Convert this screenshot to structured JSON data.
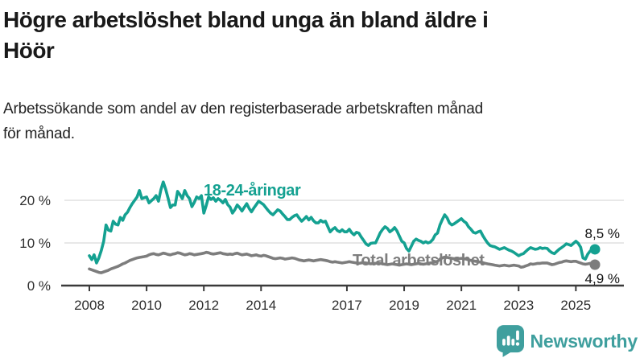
{
  "title_lines": [
    "Högre arbetslöshet bland unga än bland äldre i",
    "Höör"
  ],
  "subtitle_lines": [
    "Arbetssökande som andel av den registerbaserade arbetskraften månad",
    "för månad."
  ],
  "branding": {
    "name": "Newsworthy",
    "color": "#3f9f9e"
  },
  "colors": {
    "youth_line": "#14a191",
    "total_line": "#7d7d7d",
    "gridline": "#e0e0e0",
    "axis": "#3a3a3a",
    "text": "#111111"
  },
  "chart_data": {
    "type": "line",
    "title": "Högre arbetslöshet bland unga än bland äldre i Höör",
    "subtitle": "Arbetssökande som andel av den registerbaserade arbetskraften månad för månad.",
    "x_unit": "month",
    "x_start_year": 2008,
    "x_tick_years": [
      2008,
      2010,
      2012,
      2014,
      2017,
      2019,
      2021,
      2023,
      2025
    ],
    "y_ticks": [
      0,
      10,
      20
    ],
    "y_tick_labels": [
      "0 %",
      "10 %",
      "20 %"
    ],
    "ylim": [
      0,
      25
    ],
    "grid": "horizontal",
    "legend_position": "inline-labels",
    "series": [
      {
        "name": "18-24-åringar",
        "color": "#14a191",
        "end_label": "8,5 %",
        "values": [
          7.0,
          6.1,
          7.2,
          5.3,
          6.5,
          8.2,
          10.4,
          14.2,
          13.0,
          12.8,
          15.1,
          14.4,
          14.2,
          16.0,
          15.3,
          16.6,
          17.2,
          18.3,
          19.2,
          20.0,
          20.8,
          22.3,
          20.4,
          20.6,
          20.8,
          19.4,
          19.9,
          20.4,
          21.1,
          19.8,
          22.5,
          24.3,
          22.6,
          20.5,
          18.3,
          18.9,
          18.9,
          22.1,
          21.3,
          20.4,
          22.3,
          21.1,
          20.4,
          18.5,
          19.5,
          20.8,
          20.4,
          21.1,
          17.0,
          18.8,
          20.8,
          20.2,
          20.6,
          19.8,
          20.4,
          20.0,
          19.4,
          20.2,
          19.0,
          18.4,
          17.0,
          17.8,
          18.9,
          18.3,
          17.5,
          18.4,
          19.2,
          18.1,
          17.3,
          18.2,
          19.0,
          19.8,
          19.4,
          19.0,
          18.3,
          17.6,
          17.0,
          16.6,
          17.2,
          17.8,
          17.5,
          16.8,
          16.2,
          15.5,
          15.5,
          16.0,
          16.4,
          16.6,
          15.8,
          15.1,
          15.6,
          16.2,
          15.4,
          16.0,
          15.2,
          14.7,
          14.7,
          15.3,
          14.9,
          15.1,
          13.8,
          12.6,
          13.2,
          13.6,
          12.9,
          12.6,
          13.1,
          12.6,
          12.6,
          13.2,
          12.4,
          11.9,
          12.5,
          12.3,
          11.4,
          10.6,
          9.8,
          9.4,
          9.9,
          10.0,
          10.0,
          11.2,
          12.4,
          13.2,
          13.8,
          13.4,
          12.6,
          13.0,
          13.6,
          12.8,
          11.6,
          10.4,
          10.0,
          8.7,
          8.1,
          9.2,
          10.4,
          10.9,
          10.6,
          10.4,
          10.0,
          10.3,
          10.0,
          10.2,
          10.8,
          11.9,
          12.3,
          14.2,
          15.5,
          16.6,
          15.9,
          14.7,
          14.2,
          14.5,
          14.9,
          15.3,
          15.7,
          15.1,
          14.7,
          13.8,
          13.2,
          12.5,
          12.3,
          12.6,
          12.8,
          11.7,
          10.8,
          10.0,
          9.4,
          9.2,
          9.1,
          8.8,
          8.5,
          8.7,
          8.9,
          8.6,
          8.3,
          8.1,
          7.8,
          7.4,
          7.0,
          7.3,
          7.5,
          8.0,
          8.5,
          8.9,
          8.7,
          8.5,
          8.6,
          8.9,
          8.7,
          8.8,
          8.7,
          8.1,
          7.7,
          7.5,
          8.0,
          8.5,
          8.9,
          9.3,
          9.8,
          9.6,
          9.4,
          9.9,
          10.4,
          9.9,
          9.0,
          6.5,
          6.2,
          7.4,
          8.1,
          8.6,
          8.5
        ]
      },
      {
        "name": "Total arbetslöshet",
        "color": "#7d7d7d",
        "end_label": "4,9 %",
        "values": [
          3.9,
          3.7,
          3.5,
          3.3,
          3.1,
          3.0,
          3.2,
          3.4,
          3.6,
          3.9,
          4.1,
          4.3,
          4.5,
          4.8,
          5.1,
          5.3,
          5.6,
          5.9,
          6.1,
          6.3,
          6.5,
          6.6,
          6.7,
          6.8,
          6.9,
          7.2,
          7.4,
          7.5,
          7.3,
          7.2,
          7.4,
          7.6,
          7.5,
          7.3,
          7.2,
          7.4,
          7.5,
          7.7,
          7.6,
          7.4,
          7.2,
          7.3,
          7.5,
          7.4,
          7.2,
          7.3,
          7.4,
          7.5,
          7.6,
          7.8,
          7.7,
          7.5,
          7.4,
          7.5,
          7.6,
          7.7,
          7.5,
          7.4,
          7.3,
          7.4,
          7.3,
          7.5,
          7.6,
          7.4,
          7.2,
          7.3,
          7.4,
          7.2,
          7.0,
          7.1,
          7.2,
          7.0,
          6.9,
          7.1,
          7.0,
          6.8,
          6.6,
          6.4,
          6.3,
          6.4,
          6.5,
          6.4,
          6.2,
          6.3,
          6.4,
          6.5,
          6.4,
          6.2,
          6.0,
          5.9,
          5.8,
          5.9,
          6.0,
          5.9,
          5.8,
          5.9,
          6.0,
          6.1,
          6.0,
          5.9,
          5.8,
          5.6,
          5.5,
          5.6,
          5.5,
          5.4,
          5.3,
          5.4,
          5.5,
          5.6,
          5.5,
          5.4,
          5.3,
          5.2,
          5.3,
          5.4,
          5.3,
          5.2,
          5.1,
          5.2,
          5.2,
          5.3,
          5.2,
          5.1,
          5.0,
          4.9,
          5.0,
          5.1,
          5.0,
          4.9,
          4.8,
          4.9,
          5.0,
          5.1,
          5.0,
          4.9,
          5.0,
          5.1,
          5.2,
          5.1,
          5.0,
          5.1,
          5.2,
          5.3,
          5.4,
          5.5,
          5.7,
          6.2,
          6.5,
          6.7,
          6.6,
          6.5,
          6.4,
          6.3,
          6.2,
          6.3,
          6.4,
          6.3,
          6.2,
          6.0,
          5.9,
          5.8,
          5.7,
          5.6,
          5.5,
          5.4,
          5.2,
          5.1,
          5.0,
          4.9,
          4.8,
          4.7,
          4.6,
          4.7,
          4.8,
          4.7,
          4.6,
          4.7,
          4.8,
          4.7,
          4.6,
          4.3,
          4.4,
          4.6,
          4.8,
          5.1,
          5.0,
          5.1,
          5.2,
          5.2,
          5.3,
          5.3,
          5.3,
          5.1,
          4.9,
          5.0,
          5.2,
          5.4,
          5.5,
          5.7,
          5.8,
          5.7,
          5.6,
          5.7,
          5.7,
          5.5,
          5.3,
          5.1,
          5.0,
          5.1,
          5.2,
          5.0,
          4.9
        ]
      }
    ]
  }
}
